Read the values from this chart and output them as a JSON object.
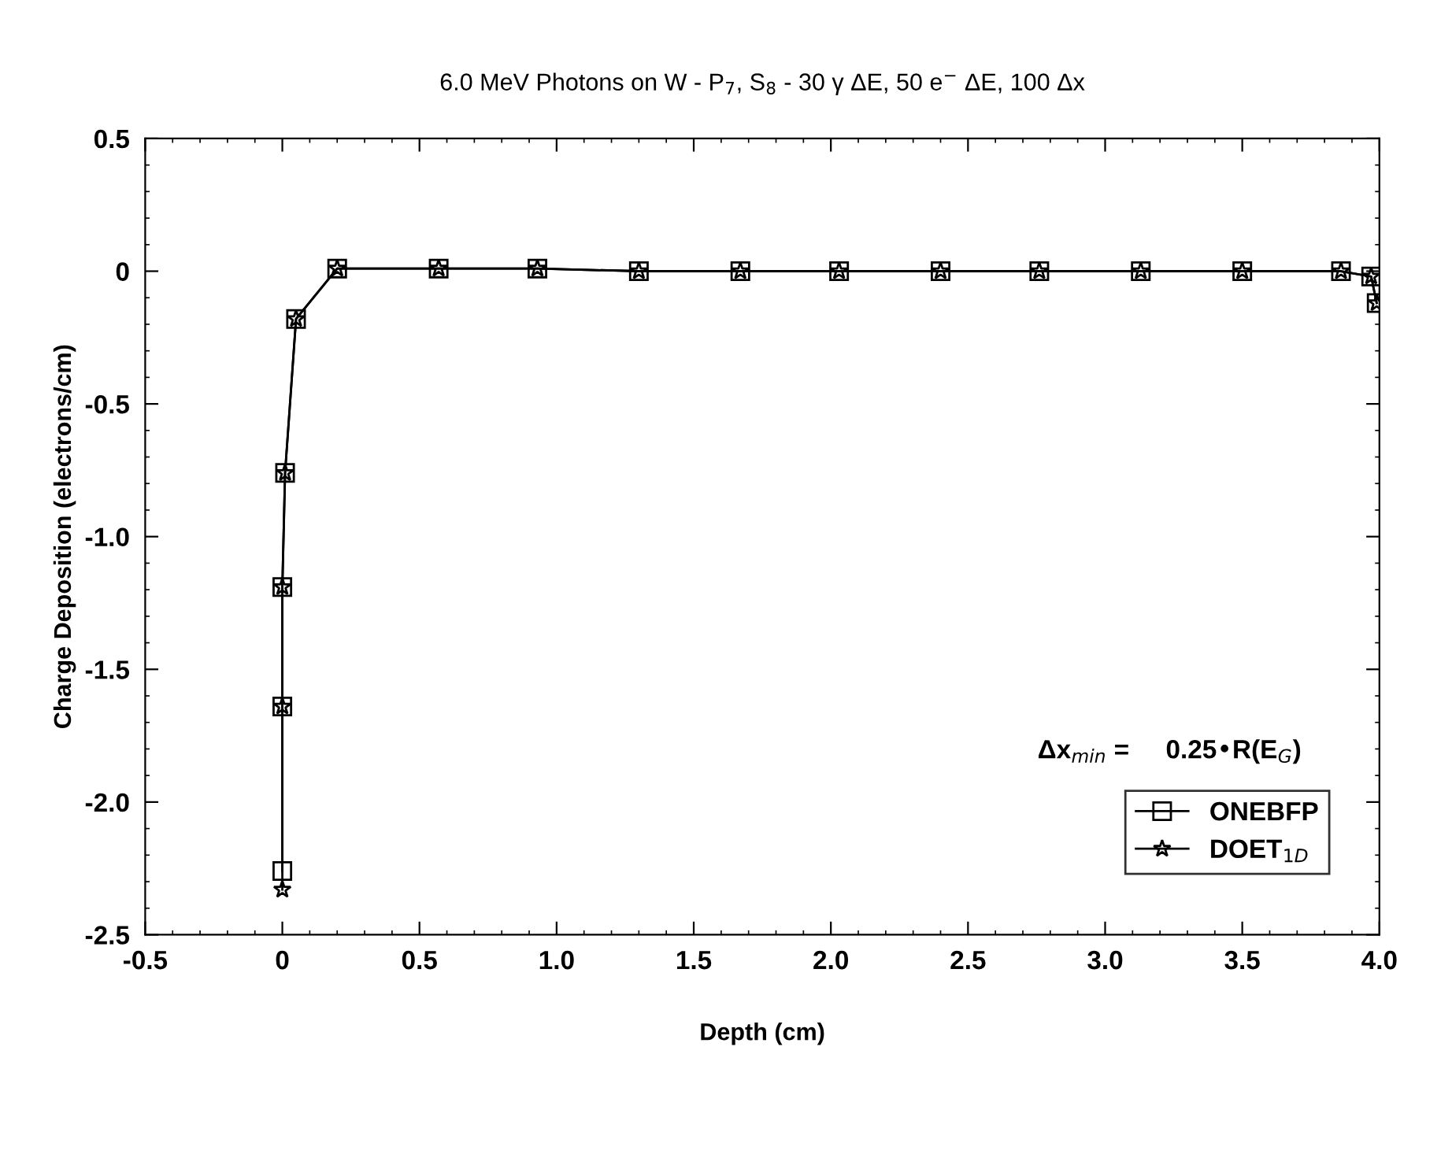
{
  "chart_data": {
    "type": "line",
    "title": "6.0 MeV Photons on W - P$_{7}$, S$_{8}$ - 30 γ ΔE, 50 e$^{−}$ ΔE, 100 Δx",
    "xlabel": "Depth (cm)",
    "ylabel": "Charge Deposition (electrons/cm)",
    "xlim": [
      -0.5,
      4.0
    ],
    "ylim": [
      -2.5,
      0.5
    ],
    "xticks": [
      {
        "value": -0.5,
        "label": "-0.5"
      },
      0,
      0.5,
      {
        "value": 1,
        "label": "1.0"
      },
      1.5,
      {
        "value": 2,
        "label": "2.0"
      },
      2.5,
      {
        "value": 3,
        "label": "3.0"
      },
      3.5,
      {
        "value": 4,
        "label": "4.0"
      }
    ],
    "yticks": [
      {
        "value": -2.5,
        "label": "-2.5"
      },
      {
        "value": -2.0,
        "label": "-2.0"
      },
      {
        "value": -1.5,
        "label": "-1.5"
      },
      {
        "value": -1.0,
        "label": "-1.0"
      },
      {
        "value": -0.5,
        "label": "-0.5"
      },
      0,
      0.5
    ],
    "x": [
      0,
      0,
      0,
      0.01,
      0.05,
      0.2,
      0.57,
      0.93,
      1.3,
      1.67,
      2.03,
      2.4,
      2.76,
      3.13,
      3.5,
      3.86,
      3.97,
      3.99
    ],
    "series": [
      {
        "name": "ONEBFP",
        "color": "#000000",
        "marker": "square",
        "values": [
          -2.26,
          -1.64,
          -1.19,
          -0.76,
          -0.18,
          0.01,
          0.01,
          0.01,
          0.0,
          0.0,
          0.0,
          0.0,
          0.0,
          0.0,
          0.0,
          0.0,
          -0.02,
          -0.12
        ]
      },
      {
        "name": "DOET$_{1D}$",
        "color": "#000000",
        "marker": "star",
        "values": [
          -2.33,
          -1.64,
          -1.19,
          -0.76,
          -0.18,
          0.01,
          0.01,
          0.01,
          0.0,
          0.0,
          0.0,
          0.0,
          0.0,
          0.0,
          0.0,
          0.0,
          -0.02,
          -0.12
        ]
      }
    ],
    "annotations": [
      "Δx$_{min}$ =     0.25•R(E$_{G}$)"
    ],
    "legend": "bottom right",
    "grid": false,
    "line_style": "solid"
  }
}
